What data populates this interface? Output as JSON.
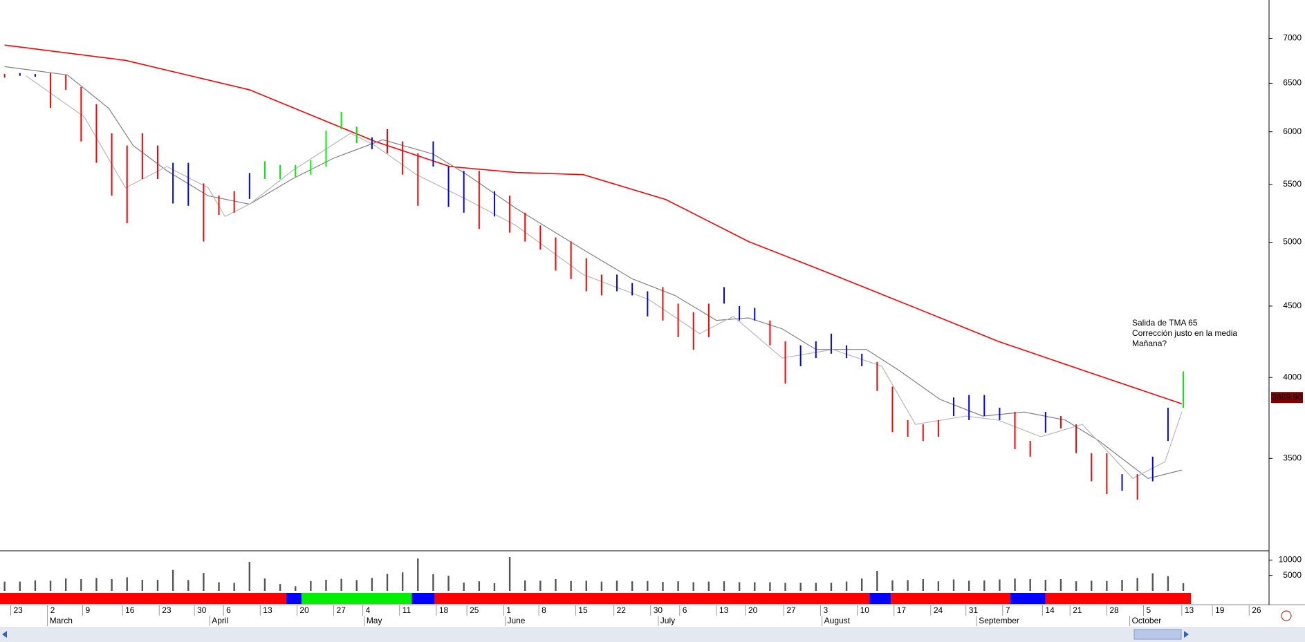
{
  "chart_data": {
    "type": "ohlc",
    "log_scale": true,
    "xlim": [
      -0.3,
      82.6
    ],
    "ylim": [
      3005,
      7457
    ],
    "yticks": [
      3500,
      4000,
      4500,
      5000,
      5500,
      6000,
      6500,
      7000
    ],
    "xticks": [
      {
        "value": 0.4,
        "label": "23"
      },
      {
        "value": 2.8,
        "label": "2"
      },
      {
        "value": 5.1,
        "label": "9"
      },
      {
        "value": 7.7,
        "label": "16"
      },
      {
        "value": 10.1,
        "label": "23"
      },
      {
        "value": 12.4,
        "label": "30"
      },
      {
        "value": 14.3,
        "label": "6"
      },
      {
        "value": 16.7,
        "label": "13"
      },
      {
        "value": 19.1,
        "label": "20"
      },
      {
        "value": 21.5,
        "label": "27"
      },
      {
        "value": 23.4,
        "label": "4"
      },
      {
        "value": 25.8,
        "label": "11"
      },
      {
        "value": 28.2,
        "label": "18"
      },
      {
        "value": 30.2,
        "label": "25"
      },
      {
        "value": 32.6,
        "label": "1"
      },
      {
        "value": 34.9,
        "label": "8"
      },
      {
        "value": 37.3,
        "label": "15"
      },
      {
        "value": 39.8,
        "label": "22"
      },
      {
        "value": 42.2,
        "label": "30"
      },
      {
        "value": 44.1,
        "label": "6"
      },
      {
        "value": 46.5,
        "label": "13"
      },
      {
        "value": 48.4,
        "label": "20"
      },
      {
        "value": 50.9,
        "label": "27"
      },
      {
        "value": 53.3,
        "label": "3"
      },
      {
        "value": 55.7,
        "label": "10"
      },
      {
        "value": 58.1,
        "label": "17"
      },
      {
        "value": 60.5,
        "label": "24"
      },
      {
        "value": 62.8,
        "label": "31"
      },
      {
        "value": 65.2,
        "label": "7"
      },
      {
        "value": 67.8,
        "label": "14"
      },
      {
        "value": 69.6,
        "label": "21"
      },
      {
        "value": 72.0,
        "label": "28"
      },
      {
        "value": 74.4,
        "label": "5"
      },
      {
        "value": 76.9,
        "label": "13"
      },
      {
        "value": 78.9,
        "label": "19"
      },
      {
        "value": 81.3,
        "label": "26"
      }
    ],
    "months": [
      {
        "value": 2.8,
        "label": "March"
      },
      {
        "value": 13.4,
        "label": "April"
      },
      {
        "value": 23.5,
        "label": "May"
      },
      {
        "value": 32.7,
        "label": "June"
      },
      {
        "value": 42.7,
        "label": "July"
      },
      {
        "value": 53.4,
        "label": "August"
      },
      {
        "value": 63.5,
        "label": "September"
      },
      {
        "value": 73.5,
        "label": "October"
      }
    ],
    "palette": {
      "r": "#ff0000",
      "b": "#0000ff",
      "g": "#00ee00"
    },
    "bars": {
      "high": [
        6600,
        6610,
        6600,
        6610,
        6590,
        6460,
        6280,
        5985,
        5865,
        5985,
        5865,
        5700,
        5700,
        5510,
        5400,
        5440,
        5605,
        5715,
        5680,
        5680,
        5725,
        6010,
        6200,
        6050,
        5945,
        6025,
        5905,
        5790,
        5905,
        5665,
        5625,
        5625,
        5440,
        5400,
        5250,
        5140,
        5040,
        5006,
        4870,
        4740,
        4740,
        4675,
        4611,
        4643,
        4518,
        4455,
        4518,
        4643,
        4500,
        4487,
        4394,
        4246,
        4218,
        4246,
        4300,
        4218,
        4160,
        4104,
        3940,
        3728,
        3702,
        3728,
        3870,
        3886,
        3886,
        3805,
        3779,
        3602,
        3779,
        3753,
        3702,
        3530,
        3530,
        3410,
        3410,
        3510,
        3805,
        4040
      ],
      "low": [
        6560,
        6580,
        6570,
        6240,
        6430,
        5905,
        5700,
        5400,
        5160,
        5550,
        5550,
        5330,
        5310,
        5006,
        5230,
        5250,
        5370,
        5550,
        5550,
        5570,
        5590,
        5665,
        6025,
        5890,
        5830,
        5790,
        5590,
        5310,
        5665,
        5300,
        5250,
        5110,
        5217,
        5080,
        5006,
        4940,
        4772,
        4705,
        4611,
        4580,
        4611,
        4580,
        4424,
        4394,
        4275,
        4188,
        4275,
        4518,
        4394,
        4394,
        4218,
        3960,
        4075,
        4130,
        4160,
        4130,
        4075,
        3912,
        3655,
        3627,
        3602,
        3627,
        3753,
        3728,
        3753,
        3728,
        3554,
        3510,
        3652,
        3677,
        3530,
        3370,
        3300,
        3318,
        3270,
        3370,
        3602,
        3805
      ],
      "colors": [
        "r",
        "b",
        "b",
        "r",
        "r",
        "r",
        "r",
        "r",
        "r",
        "r",
        "r",
        "b",
        "b",
        "r",
        "r",
        "r",
        "b",
        "g",
        "g",
        "g",
        "g",
        "g",
        "g",
        "g",
        "b",
        "r",
        "r",
        "r",
        "b",
        "b",
        "b",
        "r",
        "b",
        "r",
        "r",
        "r",
        "r",
        "r",
        "r",
        "r",
        "b",
        "b",
        "b",
        "r",
        "r",
        "r",
        "r",
        "b",
        "b",
        "b",
        "r",
        "r",
        "b",
        "b",
        "b",
        "b",
        "b",
        "r",
        "r",
        "r",
        "r",
        "r",
        "b",
        "b",
        "b",
        "b",
        "r",
        "r",
        "b",
        "r",
        "r",
        "r",
        "r",
        "b",
        "r",
        "b",
        "b",
        "g"
      ]
    },
    "lines": [
      {
        "color": "#ff0000",
        "x": [
          0,
          7.9,
          16,
          24.2,
          29.1,
          33.4,
          37.8,
          43.2,
          48.6,
          54.1,
          59.5,
          64.9,
          70.4,
          76.9
        ],
        "values": [
          6923,
          6750,
          6430,
          5905,
          5665,
          5610,
          5590,
          5365,
          5006,
          4740,
          4487,
          4246,
          4049,
          3830
        ]
      },
      {
        "color": "#808080",
        "x": [
          0,
          4.1,
          6.8,
          8.4,
          10.6,
          13.3,
          16.0,
          18.8,
          21.5,
          24.7,
          28.0,
          30.2,
          33.4,
          37.8,
          41.0,
          43.8,
          46.5,
          48.6,
          50.8,
          53.0,
          56.3,
          58.4,
          61.1,
          63.9,
          66.6,
          69.3,
          71.5,
          74.7,
          76.9
        ],
        "values": [
          6681,
          6590,
          6237,
          5865,
          5626,
          5398,
          5324,
          5551,
          5744,
          5921,
          5783,
          5590,
          5288,
          4939,
          4707,
          4579,
          4395,
          4413,
          4334,
          4189,
          4189,
          4049,
          3858,
          3753,
          3778,
          3728,
          3602,
          3386,
          3433
        ]
      },
      {
        "color": "#b8b8b8",
        "x": [
          1.4,
          5.2,
          7.9,
          10.6,
          13.3,
          14.4,
          16.0,
          18.8,
          22.6,
          24.2,
          26.9,
          30.2,
          33.4,
          37.8,
          42.1,
          45.4,
          47.6,
          50.8,
          54.1,
          57.3,
          59.5,
          62.8,
          64.9,
          67.7,
          70.4,
          73.7,
          75.8,
          76.9
        ],
        "values": [
          6580,
          6150,
          5470,
          5665,
          5470,
          5217,
          5324,
          5626,
          5985,
          5865,
          5590,
          5365,
          5140,
          4740,
          4548,
          4300,
          4424,
          4130,
          4189,
          4075,
          3702,
          3753,
          3728,
          3627,
          3702,
          3386,
          3480,
          3779
        ]
      }
    ],
    "volume": {
      "color": "#555555",
      "ylim": [
        0,
        13000
      ],
      "yticks": [
        5000,
        10000
      ],
      "values": [
        3000,
        3000,
        3400,
        3300,
        4000,
        3800,
        4200,
        3800,
        4400,
        3600,
        3600,
        6800,
        3500,
        5800,
        2800,
        2600,
        9400,
        4000,
        2200,
        1500,
        3200,
        3600,
        3900,
        3500,
        4200,
        5500,
        6000,
        10500,
        5400,
        4900,
        2700,
        3100,
        2500,
        11000,
        3400,
        3300,
        3800,
        3200,
        3300,
        3000,
        3300,
        3100,
        3200,
        2900,
        3100,
        2800,
        3000,
        3100,
        2800,
        2800,
        2800,
        2600,
        2600,
        2600,
        2600,
        3000,
        4000,
        6500,
        3400,
        3500,
        3800,
        3100,
        3700,
        3300,
        3400,
        3700,
        4000,
        3800,
        3600,
        3800,
        3100,
        3300,
        3200,
        3600,
        4200,
        5700,
        4800,
        2500
      ]
    },
    "strip": {
      "edges": [
        -0.3,
        18.4,
        19.4,
        26.6,
        28.1,
        56.5,
        57.9,
        65.7,
        68.0,
        77.5
      ],
      "colors": [
        "r",
        "b",
        "g",
        "b",
        "r",
        "b",
        "r",
        "b",
        "r"
      ]
    },
    "annotations": [
      "Salida de TMA 65",
      "Corrección justo en la media",
      "Mañana?"
    ],
    "last_price": {
      "value": 3869.9,
      "label": "3869.90"
    }
  }
}
